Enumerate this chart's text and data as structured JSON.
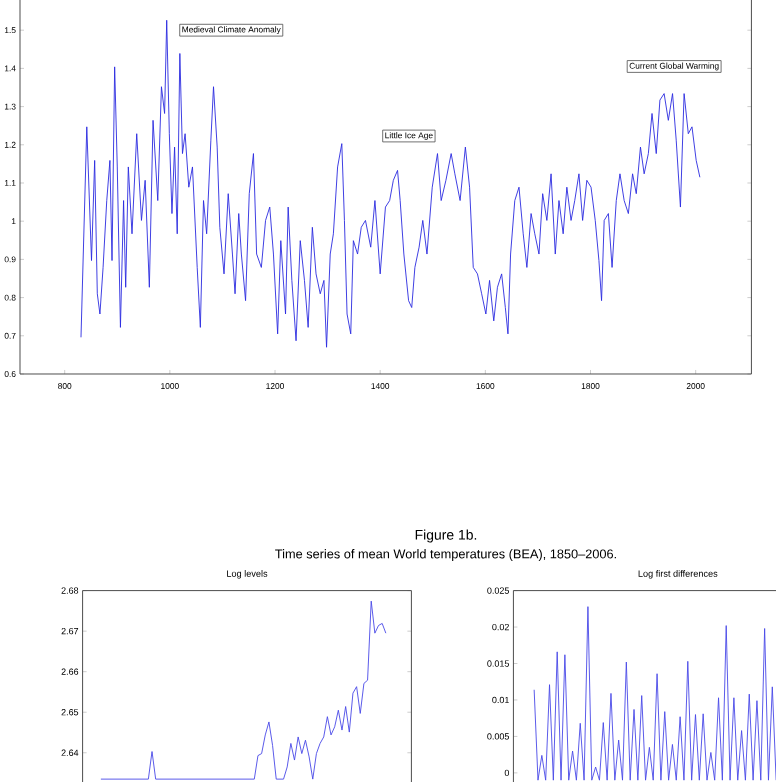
{
  "chart_data": [
    {
      "type": "line",
      "xlim": [
        715,
        2106
      ],
      "ylim": [
        0.6,
        1.6
      ],
      "xticks": [
        800,
        1000,
        1200,
        1400,
        1600,
        1800,
        2000
      ],
      "yticks": [
        0.6,
        0.7,
        0.8,
        0.9,
        1,
        1.1,
        1.2,
        1.3,
        1.4,
        1.5
      ],
      "marker": "none",
      "line_style": "solid",
      "annotations": [
        "Medieval Climate Anomaly",
        "Little Ice Age",
        "Current Global Warming"
      ],
      "series": [
        {
          "color": "#2a2ae0",
          "x": [
            831,
            842,
            851,
            857,
            862,
            867,
            873,
            880,
            886,
            890,
            895,
            900,
            906,
            912,
            916,
            921,
            928,
            937,
            946,
            953,
            961,
            968,
            977,
            984,
            990,
            994,
            999,
            1004,
            1009,
            1014,
            1019,
            1024,
            1029,
            1036,
            1043,
            1052,
            1058,
            1064,
            1070,
            1078,
            1083,
            1090,
            1095,
            1103,
            1111,
            1119,
            1124,
            1131,
            1136,
            1144,
            1151,
            1159,
            1165,
            1174,
            1182,
            1190,
            1197,
            1205,
            1211,
            1220,
            1225,
            1232,
            1240,
            1248,
            1256,
            1263,
            1271,
            1278,
            1286,
            1293,
            1298,
            1305,
            1311,
            1319,
            1327,
            1332,
            1337,
            1344,
            1349,
            1357,
            1364,
            1372,
            1382,
            1390,
            1400,
            1410,
            1418,
            1425,
            1433,
            1438,
            1445,
            1454,
            1460,
            1466,
            1474,
            1481,
            1489,
            1499,
            1509,
            1516,
            1525,
            1535,
            1542,
            1552,
            1562,
            1570,
            1577,
            1585,
            1593,
            1601,
            1608,
            1616,
            1623,
            1631,
            1638,
            1643,
            1648,
            1656,
            1664,
            1672,
            1679,
            1687,
            1694,
            1702,
            1709,
            1717,
            1725,
            1733,
            1740,
            1748,
            1755,
            1763,
            1770,
            1778,
            1785,
            1793,
            1801,
            1809,
            1816,
            1821,
            1826,
            1834,
            1841,
            1849,
            1856,
            1864,
            1872,
            1880,
            1887,
            1895,
            1902,
            1910,
            1917,
            1925,
            1932,
            1940,
            1948,
            1956,
            1963,
            1971,
            1978,
            1986,
            1993,
            2001,
            2008
          ],
          "values": [
            0.696,
            1.247,
            0.897,
            1.159,
            0.81,
            0.757,
            0.879,
            1.054,
            1.159,
            0.897,
            1.404,
            1.142,
            0.722,
            1.054,
            0.827,
            1.142,
            0.967,
            1.229,
            1.002,
            1.107,
            0.827,
            1.264,
            1.054,
            1.352,
            1.282,
            1.526,
            1.229,
            1.02,
            1.194,
            0.967,
            1.439,
            1.177,
            1.229,
            1.089,
            1.142,
            0.879,
            0.722,
            1.054,
            0.967,
            1.212,
            1.352,
            1.194,
            0.984,
            0.862,
            1.072,
            0.914,
            0.81,
            1.02,
            0.914,
            0.792,
            1.072,
            1.177,
            0.914,
            0.879,
            1.002,
            1.037,
            0.914,
            0.705,
            0.949,
            0.757,
            1.037,
            0.845,
            0.687,
            0.949,
            0.845,
            0.722,
            0.984,
            0.862,
            0.81,
            0.845,
            0.67,
            0.914,
            0.967,
            1.142,
            1.203,
            1.002,
            0.757,
            0.705,
            0.949,
            0.914,
            0.984,
            1.002,
            0.932,
            1.054,
            0.862,
            1.037,
            1.054,
            1.107,
            1.133,
            1.054,
            0.914,
            0.792,
            0.774,
            0.879,
            0.932,
            1.002,
            0.914,
            1.089,
            1.177,
            1.054,
            1.107,
            1.177,
            1.124,
            1.054,
            1.194,
            1.089,
            0.879,
            0.862,
            0.81,
            0.757,
            0.845,
            0.739,
            0.827,
            0.862,
            0.774,
            0.705,
            0.914,
            1.054,
            1.089,
            0.967,
            0.879,
            1.02,
            0.967,
            0.914,
            1.072,
            1.002,
            1.124,
            0.914,
            1.054,
            0.967,
            1.089,
            1.002,
            1.054,
            1.124,
            1.002,
            1.107,
            1.089,
            1.002,
            0.897,
            0.792,
            1.002,
            1.02,
            0.879,
            1.054,
            1.124,
            1.054,
            1.02,
            1.124,
            1.072,
            1.194,
            1.124,
            1.177,
            1.282,
            1.177,
            1.317,
            1.334,
            1.264,
            1.334,
            1.212,
            1.037,
            1.334,
            1.229,
            1.247,
            1.159,
            1.115
          ]
        }
      ]
    },
    {
      "type": "other",
      "title": "Figure 1b.",
      "subtitle": "Time series of mean World temperatures (BEA), 1850–2006."
    },
    {
      "type": "line",
      "title": "Log levels",
      "ylim": [
        2.6318,
        2.68
      ],
      "yticks": [
        2.64,
        2.65,
        2.66,
        2.67,
        2.68
      ],
      "tick_labels": "y",
      "marker": "none",
      "line_style": "solid",
      "categories": [
        null,
        null,
        null,
        null,
        null,
        null,
        null,
        null,
        null,
        null,
        null,
        null,
        null,
        null,
        null,
        null,
        null,
        null,
        null,
        null,
        null,
        null,
        null,
        null,
        null,
        null,
        null,
        null,
        null,
        null,
        null,
        null,
        null,
        null,
        null,
        null,
        null,
        null,
        null,
        null,
        null,
        null,
        null,
        null,
        null,
        null,
        null,
        null,
        null,
        null,
        null,
        null,
        null,
        null,
        null,
        null,
        null,
        null,
        null,
        null,
        null,
        null,
        null,
        null,
        null,
        null,
        null,
        null,
        null,
        null,
        null,
        null,
        null,
        null,
        null,
        null,
        null,
        null,
        null
      ],
      "series": [
        {
          "color": "#4848e8",
          "values": [
            2.6335,
            2.6335,
            2.6335,
            2.6335,
            2.6335,
            2.6335,
            2.6335,
            2.6335,
            2.6335,
            2.6335,
            2.6335,
            2.6335,
            2.6335,
            2.6335,
            2.6403,
            2.6335,
            2.6335,
            2.6335,
            2.6335,
            2.6335,
            2.6335,
            2.6335,
            2.6335,
            2.6335,
            2.6335,
            2.6335,
            2.6335,
            2.6335,
            2.6335,
            2.6335,
            2.6335,
            2.6335,
            2.6335,
            2.6335,
            2.6335,
            2.6335,
            2.6335,
            2.6335,
            2.6335,
            2.6335,
            2.6335,
            2.6335,
            2.6335,
            2.6393,
            2.6398,
            2.6444,
            2.6476,
            2.6418,
            2.6335,
            2.6335,
            2.6335,
            2.6365,
            2.6423,
            2.6382,
            2.6439,
            2.6398,
            2.6431,
            2.639,
            2.6335,
            2.6398,
            2.6423,
            2.6439,
            2.6489,
            2.6444,
            2.6464,
            2.6505,
            2.6456,
            2.6514,
            2.6451,
            2.6547,
            2.6563,
            2.6497,
            2.6571,
            2.6579,
            2.6774,
            2.6695,
            2.6714,
            2.6719,
            2.6695
          ]
        }
      ]
    },
    {
      "type": "line",
      "title": "Log first differences",
      "ylim": [
        -0.0018,
        0.025
      ],
      "yticks": [
        0,
        0.005,
        0.01,
        0.015,
        0.02,
        0.025
      ],
      "tick_labels": "y",
      "marker": "none",
      "line_style": "solid",
      "categories": [
        null,
        null,
        null,
        null,
        null,
        null,
        null,
        null,
        null,
        null,
        null,
        null,
        null,
        null,
        null,
        null,
        null,
        null,
        null,
        null,
        null,
        null,
        null,
        null,
        null,
        null,
        null,
        null,
        null,
        null,
        null,
        null,
        null,
        null,
        null,
        null,
        null,
        null,
        null,
        null,
        null,
        null,
        null,
        null,
        null,
        null,
        null,
        null,
        null,
        null,
        null,
        null,
        null,
        null,
        null,
        null,
        null,
        null,
        null,
        null,
        null,
        null,
        null,
        null
      ],
      "series": [
        {
          "color": "#4848e8",
          "values": [
            0.0114,
            -0.001,
            0.0024,
            -0.001,
            0.0121,
            -0.001,
            0.0166,
            -0.001,
            0.0162,
            -0.001,
            0.003,
            -0.001,
            0.0068,
            -0.001,
            0.0228,
            -0.001,
            0.0008,
            -0.001,
            0.0069,
            -0.001,
            0.0109,
            -0.001,
            0.0045,
            -0.001,
            0.0152,
            -0.001,
            0.0087,
            -0.001,
            0.0106,
            -0.001,
            0.0035,
            -0.001,
            0.0136,
            -0.001,
            0.0084,
            -0.001,
            0.0039,
            -0.001,
            0.0077,
            -0.001,
            0.0153,
            -0.001,
            0.008,
            -0.001,
            0.0081,
            -0.001,
            0.0028,
            -0.001,
            0.0103,
            -0.001,
            0.0202,
            -0.001,
            0.0103,
            -0.001,
            0.0058,
            -0.001,
            0.0108,
            -0.001,
            0.0099,
            -0.001,
            0.0198,
            -0.001,
            0.0118,
            -0.001
          ]
        }
      ]
    }
  ]
}
